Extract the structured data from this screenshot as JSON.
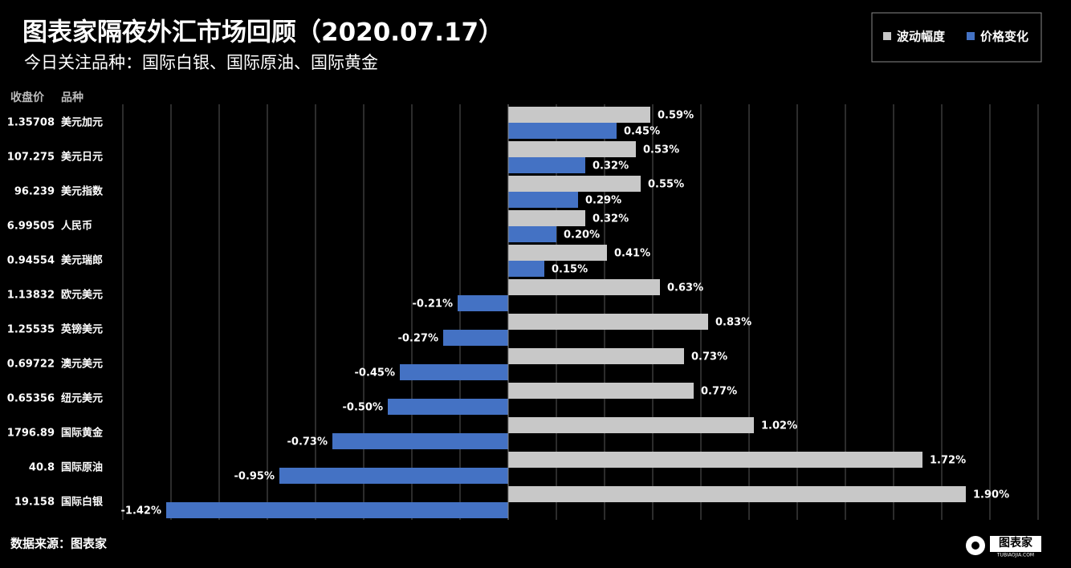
{
  "chart_data": {
    "type": "bar",
    "orientation": "horizontal",
    "title": "图表家隔夜外汇市场回顾（2020.07.17）",
    "subtitle": "今日关注品种：国际白银、国际原油、国际黄金",
    "column_headers": [
      "收盘价",
      "品种"
    ],
    "close_prices": [
      "1.35708",
      "107.275",
      "96.239",
      "6.99505",
      "0.94554",
      "1.13832",
      "1.25535",
      "0.69722",
      "0.65356",
      "1796.89",
      "40.8",
      "19.158"
    ],
    "categories": [
      "美元加元",
      "美元日元",
      "美元指数",
      "人民币",
      "美元瑞郎",
      "欧元美元",
      "英镑美元",
      "澳元美元",
      "纽元美元",
      "国际黄金",
      "国际原油",
      "国际白银"
    ],
    "series": [
      {
        "name": "波动幅度",
        "color": "#c8c8c8",
        "values": [
          0.59,
          0.53,
          0.55,
          0.32,
          0.41,
          0.63,
          0.83,
          0.73,
          0.77,
          1.02,
          1.72,
          1.9
        ],
        "value_labels": [
          "0.59%",
          "0.53%",
          "0.55%",
          "0.32%",
          "0.41%",
          "0.63%",
          "0.83%",
          "0.73%",
          "0.77%",
          "1.02%",
          "1.72%",
          "1.90%"
        ]
      },
      {
        "name": "价格变化",
        "color": "#4472c4",
        "values": [
          0.45,
          0.32,
          0.29,
          0.2,
          0.15,
          -0.21,
          -0.27,
          -0.45,
          -0.5,
          -0.73,
          -0.95,
          -1.42
        ],
        "value_labels": [
          "0.45%",
          "0.32%",
          "0.29%",
          "0.20%",
          "0.15%",
          "-0.21%",
          "-0.27%",
          "-0.45%",
          "-0.50%",
          "-0.73%",
          "-0.95%",
          "-1.42%"
        ]
      }
    ],
    "xlim": [
      -1.6,
      2.2
    ],
    "xticks": [
      -1.6,
      -1.4,
      -1.2,
      -1,
      -0.8,
      -0.6,
      -0.4,
      -0.2,
      0,
      0.2,
      0.4,
      0.6,
      0.8,
      1,
      1.2,
      1.4,
      1.6,
      1.8,
      2,
      2.2
    ],
    "grid": true,
    "legend": "top-right",
    "source": "数据来源：图表家",
    "logo": {
      "text": "图表家",
      "url": "TUBIAOJIA.COM"
    }
  }
}
